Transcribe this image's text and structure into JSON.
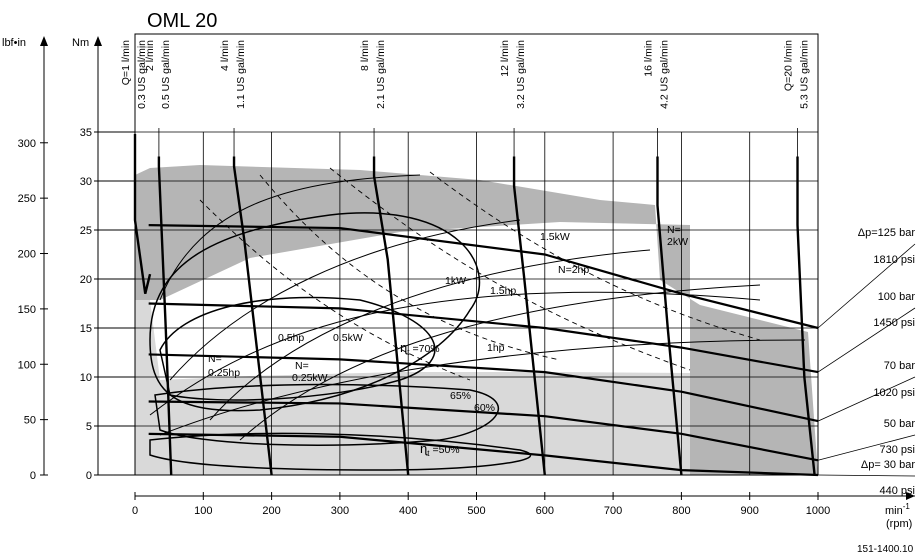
{
  "chart_data": {
    "type": "line",
    "title": "OML 20",
    "xlabel": "min-1 (rpm)",
    "xlabel_main": "min",
    "xlabel_exp": "-1",
    "xlabel_unit": "(rpm)",
    "ylabel_left": "lbf•in",
    "ylabel_right": "Nm",
    "x_ticks": [
      0,
      100,
      200,
      300,
      400,
      500,
      600,
      700,
      800,
      900,
      1000
    ],
    "y_ticks_nm": [
      0,
      5,
      10,
      15,
      20,
      25,
      30,
      35
    ],
    "y_ticks_lbfin": [
      0,
      50,
      100,
      150,
      200,
      250,
      300
    ],
    "xlim": [
      0,
      1000
    ],
    "ylim_nm": [
      0,
      35
    ],
    "grid": true,
    "figure_id": "151-1400.10",
    "flow_lines": [
      {
        "lpm": "Q=1 l/min",
        "gpm": "0.3 US gal/min",
        "points": [
          [
            0,
            34.8
          ],
          [
            0,
            26
          ],
          [
            15,
            18.5
          ],
          [
            22,
            20.5
          ]
        ]
      },
      {
        "lpm": "2 l/min",
        "gpm": "0.5 US gal/min",
        "points": [
          [
            35,
            32.5
          ],
          [
            35,
            31.5
          ],
          [
            45,
            15
          ],
          [
            53,
            0
          ]
        ]
      },
      {
        "lpm": "4 l/min",
        "gpm": "1.1 US gal/min",
        "points": [
          [
            145,
            32.5
          ],
          [
            145,
            31.5
          ],
          [
            160,
            24
          ],
          [
            200,
            0
          ]
        ]
      },
      {
        "lpm": "8 l/min",
        "gpm": "2.1 US gal/min",
        "points": [
          [
            350,
            32.5
          ],
          [
            350,
            30.5
          ],
          [
            370,
            22
          ],
          [
            400,
            0
          ]
        ]
      },
      {
        "lpm": "12 l/min",
        "gpm": "3.2 US gal/min",
        "points": [
          [
            555,
            32.5
          ],
          [
            555,
            29.5
          ],
          [
            570,
            20
          ],
          [
            600,
            0
          ]
        ]
      },
      {
        "lpm": "16 l/min",
        "gpm": "4.2 US gal/min",
        "points": [
          [
            765,
            32.5
          ],
          [
            765,
            27.5
          ],
          [
            780,
            15
          ],
          [
            800,
            0
          ]
        ]
      },
      {
        "lpm": "Q=20 l/min",
        "gpm": "5.3 US gal/min",
        "points": [
          [
            970,
            32.5
          ],
          [
            970,
            25.5
          ],
          [
            980,
            10
          ],
          [
            995,
            0
          ]
        ]
      }
    ],
    "pressure_lines": [
      {
        "bar": "Δp=125 bar",
        "psi": "1810 psi",
        "points": [
          [
            20,
            25.5
          ],
          [
            300,
            25.2
          ],
          [
            600,
            22.5
          ],
          [
            800,
            18.5
          ],
          [
            1000,
            15
          ]
        ]
      },
      {
        "bar": "100 bar",
        "psi": "1450 psi",
        "points": [
          [
            20,
            17.5
          ],
          [
            300,
            17
          ],
          [
            600,
            15
          ],
          [
            800,
            13
          ],
          [
            1000,
            10.5
          ]
        ]
      },
      {
        "bar": "70 bar",
        "psi": "1020 psi",
        "points": [
          [
            20,
            12.3
          ],
          [
            300,
            11.8
          ],
          [
            600,
            10.5
          ],
          [
            800,
            8.5
          ],
          [
            1000,
            5.5
          ]
        ]
      },
      {
        "bar": "50 bar",
        "psi": "730 psi",
        "points": [
          [
            20,
            7.5
          ],
          [
            300,
            7.3
          ],
          [
            600,
            6
          ],
          [
            800,
            4.2
          ],
          [
            1000,
            1.5
          ]
        ]
      },
      {
        "bar": "Δp= 30 bar",
        "psi": "440 psi",
        "points": [
          [
            20,
            4.2
          ],
          [
            300,
            3.9
          ],
          [
            600,
            2
          ],
          [
            800,
            0.5
          ],
          [
            1000,
            -2
          ]
        ]
      }
    ],
    "power_labels": [
      "N=0.25hp",
      "N=0.25kW",
      "0.5hp",
      "0.5kW",
      "1kW",
      "1.5hp",
      "1hp",
      "1.5kW",
      "N=2hp",
      "N=2kW"
    ],
    "efficiency_labels": [
      "ηt=70%",
      "65%",
      "60%",
      "ηt=50%"
    ],
    "efficiency_symbol": "ɳ",
    "eff70": "=70%",
    "eff65": "65%",
    "eff60": "60%",
    "eff50": "=50%",
    "subscript_t": "t",
    "annotations": {
      "n_eq": "N=",
      "p025hp": "0.25hp",
      "p025kw": "N=0.25kW",
      "p05hp": "0.5hp",
      "p05kw": "0.5kW",
      "p1kw": "1kW",
      "p15hp": "1.5hp",
      "p1hp": "1hp",
      "p15kw": "1.5kW",
      "p2hp": "N=2hp",
      "n_eq2": "N=",
      "p2kw": "2kW"
    },
    "colors": {
      "dark_region": "#b5b5b5",
      "light_region": "#d9d9d9",
      "line": "#000000"
    }
  }
}
